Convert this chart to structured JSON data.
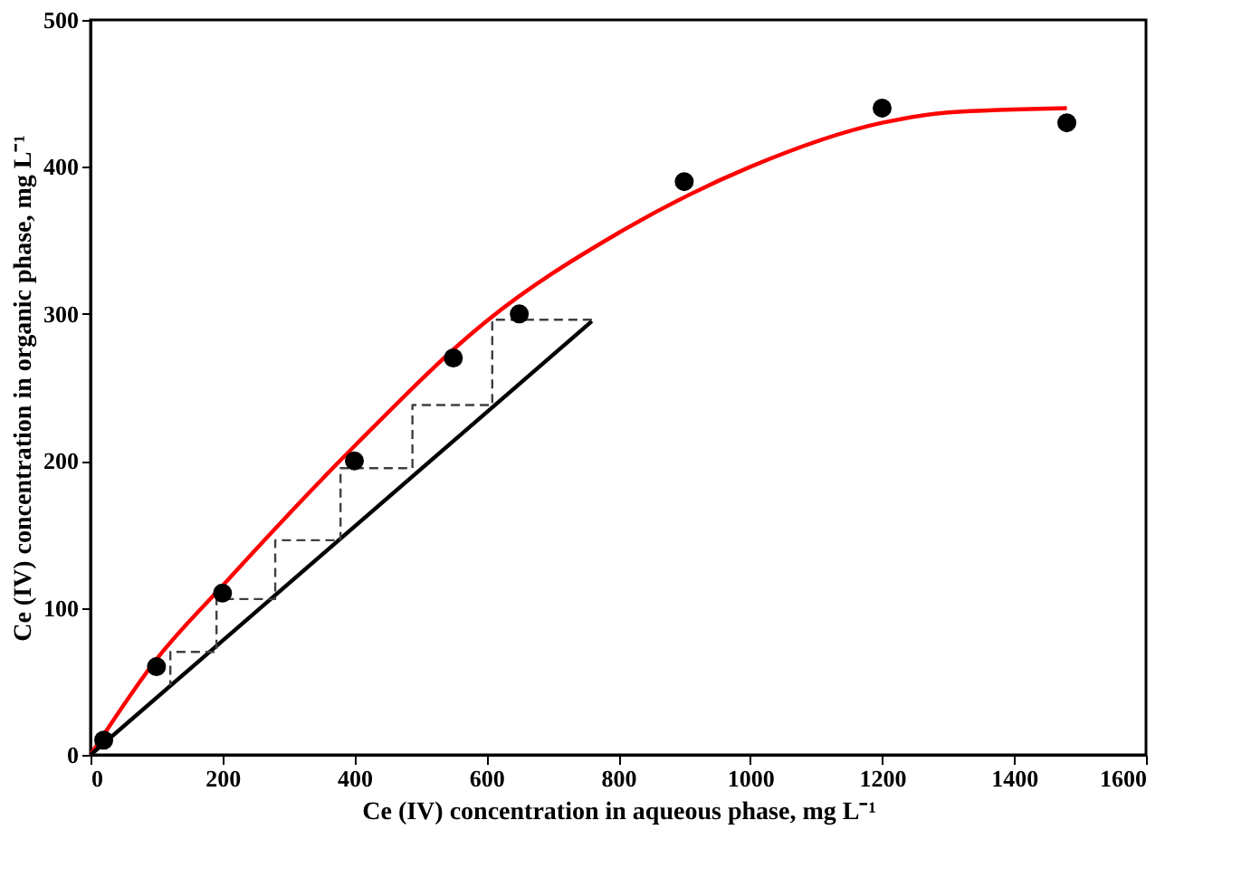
{
  "chart_data": {
    "type": "scatter",
    "xlabel": "Ce (IV) concentration in aqueous phase, mg L⁻¹",
    "ylabel": "Ce (IV) concentration in organic phase, mg L⁻¹",
    "xlim": [
      0,
      1600
    ],
    "ylim": [
      0,
      500
    ],
    "xticks": [
      0,
      200,
      400,
      600,
      800,
      1000,
      1200,
      1400,
      1600
    ],
    "yticks": [
      0,
      100,
      200,
      300,
      400,
      500
    ],
    "grid": false,
    "series": [
      {
        "type": "scatter",
        "color": "#000000",
        "marker": "circle",
        "x": [
          20,
          100,
          200,
          400,
          550,
          650,
          900,
          1200,
          1480
        ],
        "values": [
          10,
          60,
          110,
          200,
          270,
          300,
          390,
          440,
          430
        ]
      },
      {
        "type": "line",
        "color": "#ff0000",
        "marker": "none",
        "line_style": "solid",
        "x": [
          0,
          100,
          200,
          400,
          600,
          800,
          1000,
          1200,
          1300,
          1480
        ],
        "values": [
          0,
          65,
          115,
          210,
          295,
          355,
          400,
          430,
          437,
          440
        ]
      },
      {
        "type": "line",
        "color": "#000000",
        "marker": "none",
        "line_style": "solid",
        "x": [
          0,
          760
        ],
        "values": [
          0,
          295
        ]
      },
      {
        "type": "line",
        "color": "#404040",
        "marker": "none",
        "line_style": "dashed",
        "x": [
          760,
          609,
          609,
          488,
          488,
          379,
          379,
          280,
          280,
          191,
          191,
          121,
          121
        ],
        "values": [
          296,
          296,
          238,
          238,
          195,
          195,
          146,
          146,
          106,
          106,
          70,
          70,
          47
        ]
      }
    ]
  }
}
